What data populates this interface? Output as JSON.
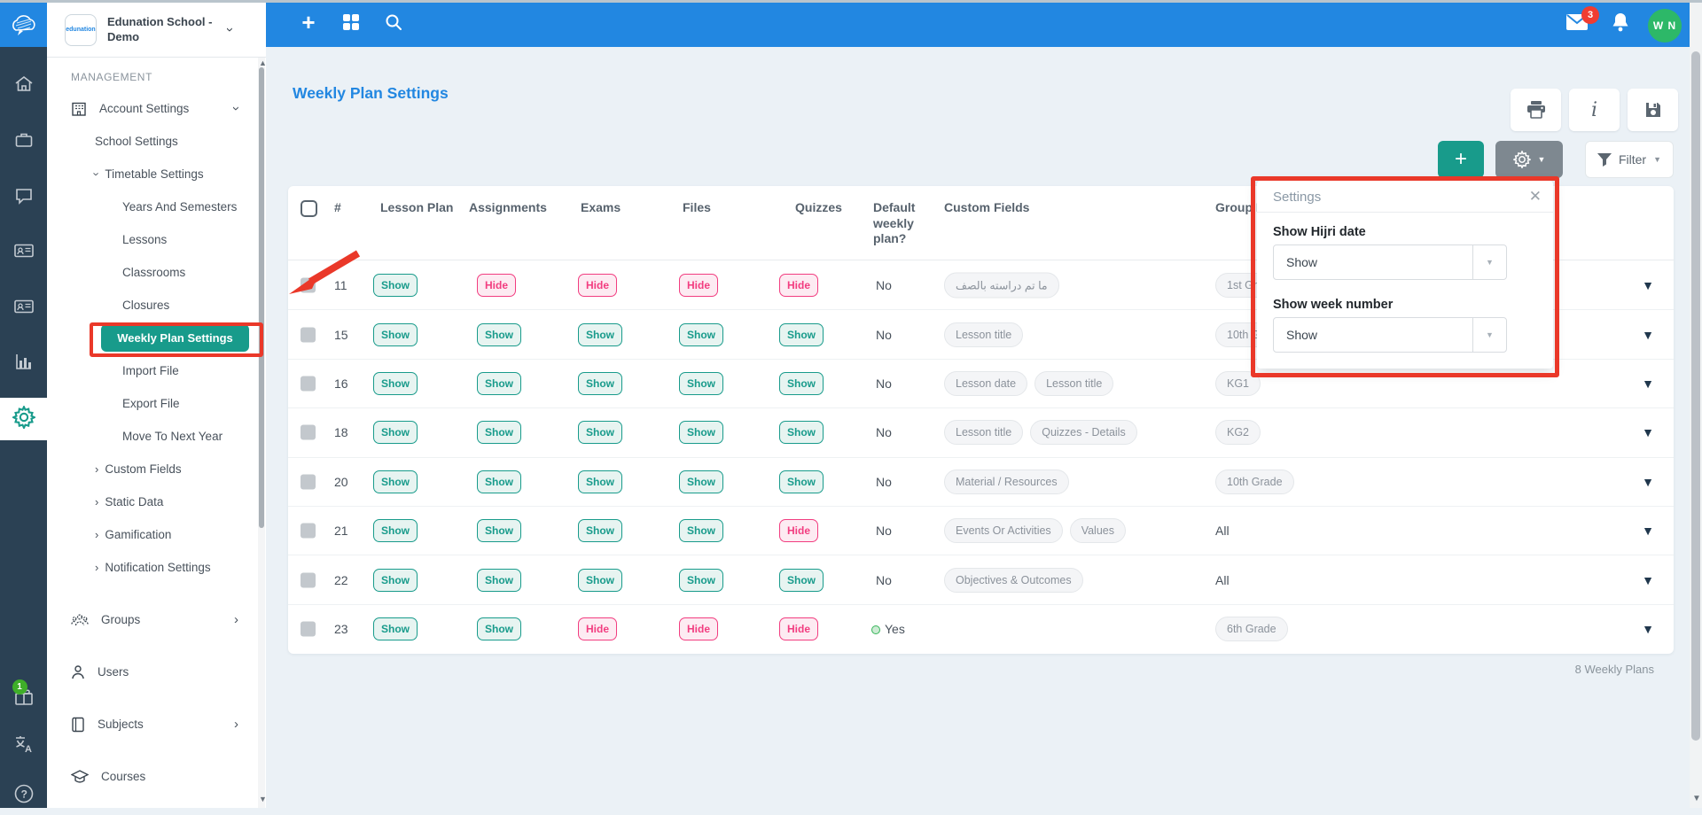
{
  "topbar": {
    "logo_text": "edunation",
    "school_name": "Edunation School - Demo",
    "mail_badge": "3",
    "avatar_initials": "W N"
  },
  "rail": {
    "gift_badge": "1",
    "items": [
      "home",
      "briefcase",
      "chat",
      "id-card",
      "id-card",
      "bar-chart",
      "gear",
      "gift",
      "translate",
      "help"
    ]
  },
  "sidebar": {
    "section_label": "MANAGEMENT",
    "items": [
      {
        "label": "Account Settings",
        "icon": "building",
        "trail_chevron": "down",
        "indent": 0
      },
      {
        "label": "School Settings",
        "indent": 1
      },
      {
        "label": "Timetable Settings",
        "lead_chevron": "down",
        "indent": 1
      },
      {
        "label": "Years And Semesters",
        "indent": 2
      },
      {
        "label": "Lessons",
        "indent": 2
      },
      {
        "label": "Classrooms",
        "indent": 2
      },
      {
        "label": "Closures",
        "indent": 2
      },
      {
        "label": "Weekly Plan Settings",
        "indent": 2,
        "active": true
      },
      {
        "label": "Import File",
        "indent": 2
      },
      {
        "label": "Export File",
        "indent": 2
      },
      {
        "label": "Move To Next Year",
        "indent": 2
      },
      {
        "label": "Custom Fields",
        "lead_chevron": "right",
        "indent": 1
      },
      {
        "label": "Static Data",
        "lead_chevron": "right",
        "indent": 1
      },
      {
        "label": "Gamification",
        "lead_chevron": "right",
        "indent": 1
      },
      {
        "label": "Notification Settings",
        "lead_chevron": "right",
        "indent": 1
      },
      {
        "label": "Groups",
        "icon": "groups",
        "trail_chevron": "right",
        "indent": 0,
        "gap": true
      },
      {
        "label": "Users",
        "icon": "user",
        "indent": 0,
        "gap": true
      },
      {
        "label": "Subjects",
        "icon": "subjects",
        "trail_chevron": "right",
        "indent": 0,
        "gap": true
      },
      {
        "label": "Courses",
        "icon": "courses",
        "indent": 0,
        "gap": true
      }
    ]
  },
  "page": {
    "title": "Weekly Plan Settings",
    "toolbar_icons": [
      "print",
      "info",
      "save"
    ],
    "add_label": "+",
    "filter_label": "Filter",
    "footer_count": "8 Weekly Plans"
  },
  "settings_popup": {
    "title": "Settings",
    "fields": [
      {
        "label": "Show Hijri date",
        "value": "Show"
      },
      {
        "label": "Show week number",
        "value": "Show"
      }
    ]
  },
  "table": {
    "headers": [
      "#",
      "Lesson Plan",
      "Assignments",
      "Exams",
      "Files",
      "Quizzes",
      "Default weekly plan?",
      "Custom Fields",
      "Group Level"
    ],
    "rows": [
      {
        "num": "11",
        "lesson_plan": "Show",
        "assignments": "Hide",
        "exams": "Hide",
        "files": "Hide",
        "quizzes": "Hide",
        "default_weekly_plan": "No",
        "custom_fields": [
          "ما تم دراسته بالصف"
        ],
        "group": "1st Grade",
        "group_style": "chip"
      },
      {
        "num": "15",
        "lesson_plan": "Show",
        "assignments": "Show",
        "exams": "Show",
        "files": "Show",
        "quizzes": "Show",
        "default_weekly_plan": "No",
        "custom_fields": [
          "Lesson title"
        ],
        "group": "10th Grade",
        "group_style": "chip"
      },
      {
        "num": "16",
        "lesson_plan": "Show",
        "assignments": "Show",
        "exams": "Show",
        "files": "Show",
        "quizzes": "Show",
        "default_weekly_plan": "No",
        "custom_fields": [
          "Lesson date",
          "Lesson title"
        ],
        "group": "KG1",
        "group_style": "chip"
      },
      {
        "num": "18",
        "lesson_plan": "Show",
        "assignments": "Show",
        "exams": "Show",
        "files": "Show",
        "quizzes": "Show",
        "default_weekly_plan": "No",
        "custom_fields": [
          "Lesson title",
          "Quizzes - Details"
        ],
        "group": "KG2",
        "group_style": "chip"
      },
      {
        "num": "20",
        "lesson_plan": "Show",
        "assignments": "Show",
        "exams": "Show",
        "files": "Show",
        "quizzes": "Show",
        "default_weekly_plan": "No",
        "custom_fields": [
          "Material / Resources"
        ],
        "group": "10th Grade",
        "group_style": "chip"
      },
      {
        "num": "21",
        "lesson_plan": "Show",
        "assignments": "Show",
        "exams": "Show",
        "files": "Show",
        "quizzes": "Hide",
        "default_weekly_plan": "No",
        "custom_fields": [
          "Events Or Activities",
          "Values"
        ],
        "group": "All",
        "group_style": "text"
      },
      {
        "num": "22",
        "lesson_plan": "Show",
        "assignments": "Show",
        "exams": "Show",
        "files": "Show",
        "quizzes": "Show",
        "default_weekly_plan": "No",
        "custom_fields": [
          "Objectives & Outcomes"
        ],
        "group": "All",
        "group_style": "text"
      },
      {
        "num": "23",
        "lesson_plan": "Show",
        "assignments": "Show",
        "exams": "Hide",
        "files": "Hide",
        "quizzes": "Hide",
        "default_weekly_plan": "Yes",
        "custom_fields": [],
        "group": "6th Grade",
        "group_style": "chip"
      }
    ]
  },
  "colors": {
    "topbar": "#2287e1",
    "rail": "#2b4154",
    "accent_teal": "#189b8b",
    "show_badge": "#189b8b",
    "hide_badge": "#f23d80",
    "annotation_red": "#ea3829",
    "avatar_green": "#2db868",
    "mail_badge_red": "#f03c31",
    "title_blue": "#2287e1"
  }
}
